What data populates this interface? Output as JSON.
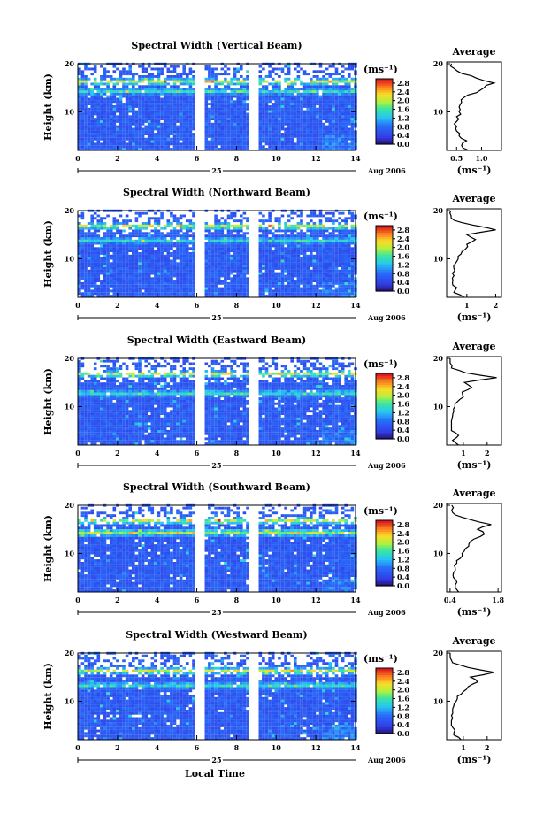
{
  "figure": {
    "bottom_xlabel": "Local Time"
  },
  "panels": [
    {
      "title": "Spectral Width (Vertical Beam)",
      "ylabel": "Height (km)",
      "yticks": [
        "20",
        "10"
      ],
      "xticks": [
        "0",
        "2",
        "4",
        "6",
        "8",
        "10",
        "12",
        "14"
      ],
      "day_label": "25",
      "month_label": "Aug 2006",
      "colorbar_unit": "(ms⁻¹)",
      "colorbar_ticks": [
        "2.8",
        "2.4",
        "2.0",
        "1.6",
        "1.2",
        "0.8",
        "0.4",
        "0.0"
      ],
      "avg_title": "Average",
      "avg_yticks": [
        "20",
        "10"
      ],
      "avg_xticks": [
        "0.5",
        "1.0"
      ],
      "avg_xlabel": "(ms⁻¹)"
    },
    {
      "title": "Spectral Width (Northward Beam)",
      "ylabel": "Height (km)",
      "yticks": [
        "20",
        "10"
      ],
      "xticks": [
        "0",
        "2",
        "4",
        "6",
        "8",
        "10",
        "12",
        "14"
      ],
      "day_label": "25",
      "month_label": "Aug 2006",
      "colorbar_unit": "(ms⁻¹)",
      "colorbar_ticks": [
        "2.8",
        "2.4",
        "2.0",
        "1.6",
        "1.2",
        "0.8",
        "0.4",
        "0.0"
      ],
      "avg_title": "Average",
      "avg_yticks": [
        "20",
        "10"
      ],
      "avg_xticks": [
        "1",
        "2"
      ],
      "avg_xlabel": "(ms⁻¹)"
    },
    {
      "title": "Spectral Width (Eastward Beam)",
      "ylabel": "Height (km)",
      "yticks": [
        "20",
        "10"
      ],
      "xticks": [
        "0",
        "2",
        "4",
        "6",
        "8",
        "10",
        "12",
        "14"
      ],
      "day_label": "25",
      "month_label": "Aug 2006",
      "colorbar_unit": "(ms⁻¹)",
      "colorbar_ticks": [
        "2.8",
        "2.4",
        "2.0",
        "1.6",
        "1.2",
        "0.8",
        "0.4",
        "0.0"
      ],
      "avg_title": "Average",
      "avg_yticks": [
        "20",
        "10"
      ],
      "avg_xticks": [
        "1",
        "2"
      ],
      "avg_xlabel": "(ms⁻¹)"
    },
    {
      "title": "Spectral Width (Southward Beam)",
      "ylabel": "Height (km)",
      "yticks": [
        "20",
        "10"
      ],
      "xticks": [
        "0",
        "2",
        "4",
        "6",
        "8",
        "10",
        "12",
        "14"
      ],
      "day_label": "25",
      "month_label": "Aug 2006",
      "colorbar_unit": "(ms⁻¹)",
      "colorbar_ticks": [
        "2.8",
        "2.4",
        "2.0",
        "1.6",
        "1.2",
        "0.8",
        "0.4",
        "0.0"
      ],
      "avg_title": "Average",
      "avg_yticks": [
        "20",
        "10"
      ],
      "avg_xticks": [
        "0.4",
        "1.8"
      ],
      "avg_xlabel": "(ms⁻¹)"
    },
    {
      "title": "Spectral Width (Westward Beam)",
      "ylabel": "Height (km)",
      "yticks": [
        "20",
        "10"
      ],
      "xticks": [
        "0",
        "2",
        "4",
        "6",
        "8",
        "10",
        "12",
        "14"
      ],
      "day_label": "25",
      "month_label": "Aug 2006",
      "colorbar_unit": "(ms⁻¹)",
      "colorbar_ticks": [
        "2.8",
        "2.4",
        "2.0",
        "1.6",
        "1.2",
        "0.8",
        "0.4",
        "0.0"
      ],
      "avg_title": "Average",
      "avg_yticks": [
        "20",
        "10"
      ],
      "avg_xticks": [
        "1",
        "2"
      ],
      "avg_xlabel": "(ms⁻¹)"
    }
  ],
  "chart_data": [
    {
      "type": "heatmap",
      "title": "Spectral Width (Vertical Beam)",
      "xlabel": "Local Time",
      "ylabel": "Height (km)",
      "xlim": [
        0,
        14
      ],
      "ylim": [
        2,
        20
      ],
      "clim": [
        0.0,
        3.0
      ],
      "data_gaps_hours": [
        [
          6.0,
          6.3
        ],
        [
          8.8,
          9.1
        ]
      ],
      "notable_layers_km": [
        {
          "height": 16.0,
          "level": "high"
        },
        {
          "height": 14.0,
          "level": "moderate"
        }
      ],
      "average": {
        "xlim": [
          0.3,
          1.4
        ],
        "height_km": [
          2,
          3,
          4,
          5,
          6,
          7,
          8,
          9,
          10,
          11,
          12,
          13,
          14,
          15,
          16,
          17,
          18,
          19,
          20
        ],
        "width": [
          0.75,
          0.6,
          0.7,
          0.55,
          0.5,
          0.5,
          0.5,
          0.5,
          0.55,
          0.55,
          0.6,
          0.65,
          0.9,
          1.05,
          1.25,
          0.9,
          0.6,
          0.45,
          0.4
        ]
      }
    },
    {
      "type": "heatmap",
      "title": "Spectral Width (Northward Beam)",
      "xlabel": "Local Time",
      "ylabel": "Height (km)",
      "xlim": [
        0,
        14
      ],
      "ylim": [
        2,
        20
      ],
      "clim": [
        0.0,
        3.0
      ],
      "data_gaps_hours": [
        [
          6.0,
          6.3
        ],
        [
          8.8,
          9.1
        ]
      ],
      "notable_layers_km": [
        {
          "height": 16.5,
          "level": "high"
        },
        {
          "height": 13.5,
          "level": "moderate"
        }
      ],
      "average": {
        "xlim": [
          0.3,
          2.2
        ],
        "height_km": [
          2,
          3,
          4,
          5,
          6,
          7,
          8,
          9,
          10,
          11,
          12,
          13,
          14,
          15,
          16,
          17,
          18,
          19,
          20
        ],
        "width": [
          0.9,
          0.55,
          0.65,
          0.5,
          0.5,
          0.5,
          0.55,
          0.6,
          0.7,
          0.8,
          0.95,
          1.0,
          1.3,
          1.0,
          2.0,
          1.2,
          0.55,
          0.45,
          0.45
        ]
      }
    },
    {
      "type": "heatmap",
      "title": "Spectral Width (Eastward Beam)",
      "xlabel": "Local Time",
      "ylabel": "Height (km)",
      "xlim": [
        0,
        14
      ],
      "ylim": [
        2,
        20
      ],
      "clim": [
        0.0,
        3.0
      ],
      "data_gaps_hours": [
        [
          6.0,
          6.3
        ],
        [
          8.8,
          9.1
        ]
      ],
      "notable_layers_km": [
        {
          "height": 16.5,
          "level": "high"
        },
        {
          "height": 12.5,
          "level": "moderate"
        }
      ],
      "average": {
        "xlim": [
          0.3,
          2.6
        ],
        "height_km": [
          2,
          3,
          4,
          5,
          6,
          7,
          8,
          9,
          10,
          11,
          12,
          13,
          14,
          15,
          16,
          17,
          18,
          19,
          20
        ],
        "width": [
          0.8,
          0.55,
          0.8,
          0.5,
          0.5,
          0.5,
          0.55,
          0.6,
          0.65,
          0.75,
          1.0,
          0.95,
          1.35,
          1.05,
          2.4,
          1.1,
          0.5,
          0.45,
          0.45
        ]
      }
    },
    {
      "type": "heatmap",
      "title": "Spectral Width (Southward Beam)",
      "xlabel": "Local Time",
      "ylabel": "Height (km)",
      "xlim": [
        0,
        14
      ],
      "ylim": [
        2,
        20
      ],
      "clim": [
        0.0,
        3.0
      ],
      "data_gaps_hours": [
        [
          6.0,
          6.3
        ],
        [
          8.8,
          9.1
        ]
      ],
      "notable_layers_km": [
        {
          "height": 16.5,
          "level": "high"
        },
        {
          "height": 14.0,
          "level": "high"
        }
      ],
      "average": {
        "xlim": [
          0.3,
          1.9
        ],
        "height_km": [
          2,
          3,
          4,
          5,
          6,
          7,
          8,
          9,
          10,
          11,
          12,
          13,
          14,
          15,
          16,
          17,
          18,
          19,
          20
        ],
        "width": [
          0.65,
          0.55,
          0.6,
          0.5,
          0.5,
          0.55,
          0.6,
          0.7,
          0.75,
          0.85,
          0.95,
          1.1,
          1.4,
          1.2,
          1.6,
          1.0,
          0.55,
          0.45,
          0.45
        ]
      }
    },
    {
      "type": "heatmap",
      "title": "Spectral Width (Westward Beam)",
      "xlabel": "Local Time",
      "ylabel": "Height (km)",
      "xlim": [
        0,
        14
      ],
      "ylim": [
        2,
        20
      ],
      "clim": [
        0.0,
        3.0
      ],
      "data_gaps_hours": [
        [
          6.0,
          6.3
        ],
        [
          8.8,
          9.1
        ]
      ],
      "notable_layers_km": [
        {
          "height": 16.0,
          "level": "high"
        },
        {
          "height": 13.0,
          "level": "moderate"
        }
      ],
      "average": {
        "xlim": [
          0.3,
          2.6
        ],
        "height_km": [
          2,
          3,
          4,
          5,
          6,
          7,
          8,
          9,
          10,
          11,
          12,
          13,
          14,
          15,
          16,
          17,
          18,
          19,
          20
        ],
        "width": [
          0.9,
          0.6,
          0.65,
          0.5,
          0.5,
          0.5,
          0.55,
          0.6,
          0.7,
          0.75,
          1.0,
          1.2,
          1.6,
          1.3,
          2.3,
          1.2,
          0.55,
          0.45,
          0.45
        ]
      }
    }
  ]
}
